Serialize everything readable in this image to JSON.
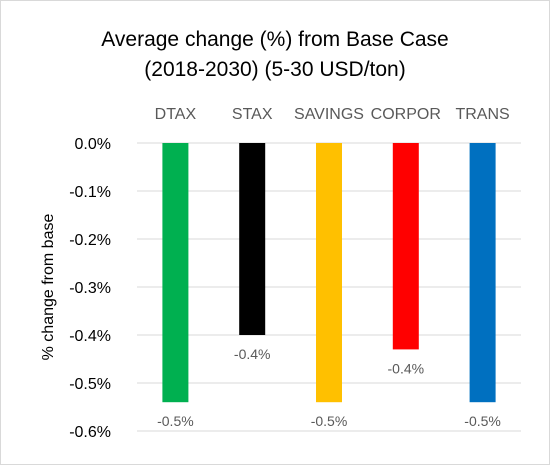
{
  "chart_data": {
    "type": "bar",
    "title_lines": [
      "Average change (%) from Base Case",
      "(2018-2030) (5-30 USD/ton)"
    ],
    "ylabel": "% change from base",
    "xlabel": "",
    "categories": [
      "DTAX",
      "STAX",
      "SAVINGS",
      "CORPOR",
      "TRANS"
    ],
    "values": [
      -0.54,
      -0.4,
      -0.54,
      -0.43,
      -0.54
    ],
    "data_labels": [
      "-0.5%",
      "-0.4%",
      "-0.5%",
      "-0.4%",
      "-0.5%"
    ],
    "colors": [
      "#00b050",
      "#000000",
      "#ffc000",
      "#ff0000",
      "#0070c0"
    ],
    "ylim": [
      -0.6,
      0.0
    ],
    "yticks": [
      0.0,
      -0.1,
      -0.2,
      -0.3,
      -0.4,
      -0.5,
      -0.6
    ],
    "ytick_labels": [
      "0.0%",
      "-0.1%",
      "-0.2%",
      "-0.3%",
      "-0.4%",
      "-0.5%",
      "-0.6%"
    ],
    "grid": true,
    "category_labels_position": "top",
    "legend": "none"
  }
}
